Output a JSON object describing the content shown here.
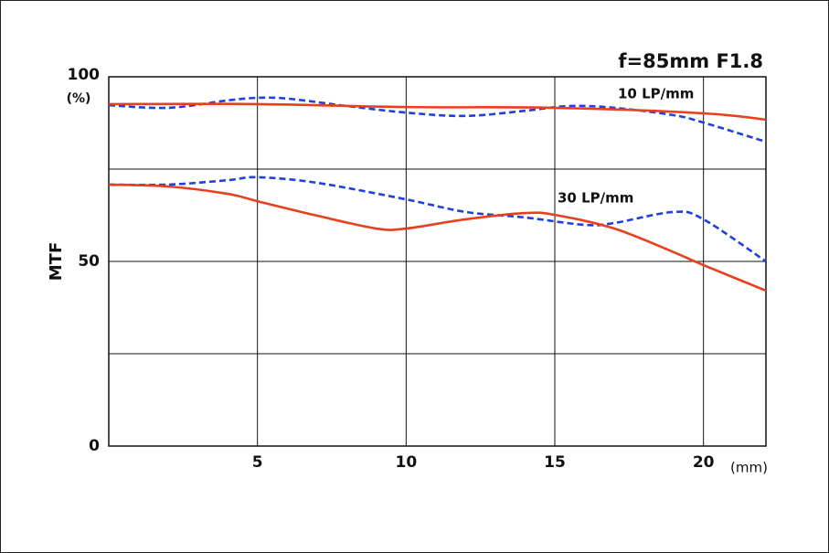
{
  "chart_data": {
    "type": "line",
    "title": "f=85mm F1.8",
    "y_label": "MTF",
    "y_unit": "(%)",
    "x_unit": "(mm)",
    "annotations": [
      "10 LP/mm",
      "30 LP/mm"
    ],
    "xlim": [
      0,
      22.1
    ],
    "ylim": [
      0,
      100
    ],
    "xticks": [
      5,
      10,
      15,
      20
    ],
    "yticks": [
      0,
      50,
      100
    ],
    "minor_yticks": [
      25,
      75
    ],
    "grid": true,
    "series": [
      {
        "color": "#e8401c",
        "dash": false,
        "x": [
          0,
          5,
          10,
          15,
          20,
          22.1
        ],
        "values": [
          92.6,
          92.6,
          91.8,
          91.6,
          90.1,
          88.4
        ]
      },
      {
        "color": "#1f3fe0",
        "dash": true,
        "x": [
          0,
          2,
          4,
          5,
          6,
          8,
          10,
          12,
          14,
          15.5,
          17,
          19,
          20,
          22.1
        ],
        "values": [
          92.3,
          91.6,
          93.6,
          94.3,
          94.1,
          92.1,
          90.3,
          89.4,
          90.8,
          92.1,
          91.6,
          89.6,
          87.6,
          82.4
        ]
      },
      {
        "color": "#e8401c",
        "dash": false,
        "x": [
          0,
          2,
          4,
          5,
          7,
          9,
          10,
          12,
          14,
          15,
          17,
          19,
          20,
          22.1
        ],
        "values": [
          70.8,
          70.3,
          68.3,
          66.3,
          62.4,
          58.9,
          58.9,
          61.4,
          63.1,
          62.6,
          58.9,
          52.5,
          49.0,
          42.1
        ]
      },
      {
        "color": "#1f3fe0",
        "dash": true,
        "x": [
          0,
          2,
          4,
          5,
          7,
          10,
          12,
          14,
          16,
          17,
          19,
          20,
          22.1
        ],
        "values": [
          70.8,
          70.8,
          72.0,
          72.8,
          71.3,
          66.8,
          63.4,
          61.9,
          59.9,
          60.4,
          63.4,
          61.4,
          50.0
        ]
      }
    ]
  }
}
